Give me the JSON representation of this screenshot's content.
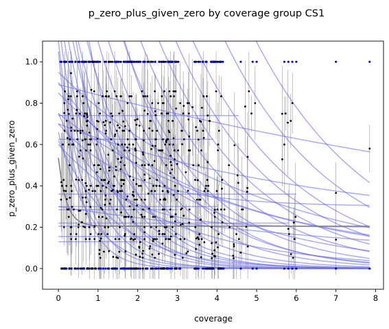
{
  "chart_data": {
    "type": "scatter",
    "title": "p_zero_plus_given_zero by coverage group CS1",
    "xlabel": "coverage",
    "ylabel": "p_zero_plus_given_zero",
    "xlim": [
      -0.4,
      8.2
    ],
    "ylim": [
      -0.1,
      1.1
    ],
    "x_ticks": [
      0,
      1,
      2,
      3,
      4,
      5,
      6,
      7,
      8
    ],
    "y_ticks": [
      0.0,
      0.2,
      0.4,
      0.6,
      0.8,
      1.0
    ],
    "x_tick_labels": [
      "0",
      "1",
      "2",
      "3",
      "4",
      "5",
      "6",
      "7",
      "8"
    ],
    "y_tick_labels": [
      "0.0",
      "0.2",
      "0.4",
      "0.6",
      "0.8",
      "1.0"
    ],
    "grid": false,
    "legend": "none",
    "colors": {
      "points": "#000000",
      "fits": "#6666ee",
      "overall_fit": "#7f7f7f",
      "extremes": "#0000cc",
      "errorbars": "#9a9a9a"
    },
    "fit_curves": [
      {
        "a": 1.05,
        "b": 1.9,
        "c": 0.0
      },
      {
        "a": 1.1,
        "b": 1.6,
        "c": 0.0
      },
      {
        "a": 1.2,
        "b": 1.3,
        "c": 0.0
      },
      {
        "a": 1.3,
        "b": 1.1,
        "c": 0.0
      },
      {
        "a": 1.4,
        "b": 0.95,
        "c": 0.0
      },
      {
        "a": 1.5,
        "b": 0.85,
        "c": 0.0
      },
      {
        "a": 1.6,
        "b": 0.75,
        "c": 0.0
      },
      {
        "a": 1.8,
        "b": 0.68,
        "c": 0.0
      },
      {
        "a": 2.0,
        "b": 0.6,
        "c": 0.0
      },
      {
        "a": 2.2,
        "b": 0.55,
        "c": 0.0
      },
      {
        "a": 2.5,
        "b": 0.5,
        "c": 0.0
      },
      {
        "a": 2.8,
        "b": 0.45,
        "c": 0.0
      },
      {
        "a": 3.2,
        "b": 0.42,
        "c": 0.0
      },
      {
        "a": 3.6,
        "b": 0.4,
        "c": 0.0
      },
      {
        "a": 4.0,
        "b": 0.38,
        "c": 0.0
      },
      {
        "a": 5.0,
        "b": 0.36,
        "c": 0.0
      },
      {
        "a": 6.0,
        "b": 0.34,
        "c": 0.0
      },
      {
        "a": 3.0,
        "b": 0.6,
        "c": 0.0
      },
      {
        "a": 2.2,
        "b": 0.9,
        "c": 0.0
      },
      {
        "a": 1.8,
        "b": 1.1,
        "c": 0.0
      },
      {
        "a": 0.66,
        "b": 1.2,
        "c": 0.0
      },
      {
        "a": 0.62,
        "b": 0.7,
        "c": 0.0
      },
      {
        "a": 0.55,
        "b": 0.8,
        "c": 0.2
      },
      {
        "a": 0.4,
        "b": 0.55,
        "c": 0.3
      },
      {
        "a": 0.6,
        "b": 0.35,
        "c": 0.0
      },
      {
        "a": 0.89,
        "b": 0.058,
        "c": 0.0
      },
      {
        "a": 0.95,
        "b": 0.2,
        "c": 0.0
      },
      {
        "a": 0.9,
        "b": 0.3,
        "c": 0.0
      },
      {
        "a": 0.8,
        "b": 0.25,
        "c": 0.05
      },
      {
        "a": 0.75,
        "b": 0.2,
        "c": 0.0
      },
      {
        "a": 0.5,
        "b": 0.15,
        "c": 0.2
      },
      {
        "a": 0.3,
        "b": 0.1,
        "c": 0.0
      }
    ],
    "flat_lines": [
      {
        "y": 0.74,
        "x0": 0.0,
        "x1": 4.55
      },
      {
        "y": 0.625,
        "x0": 0.0,
        "x1": 3.9
      },
      {
        "y": 0.36,
        "x0": 0.0,
        "x1": 6.0
      },
      {
        "y": 0.3,
        "x0": 0.0,
        "x1": 4.0
      },
      {
        "y": 0.285,
        "x0": 0.0,
        "x1": 3.0
      },
      {
        "y": 0.22,
        "x0": 0.0,
        "x1": 5.8
      },
      {
        "y": 0.205,
        "x0": 0.0,
        "x1": 3.9
      },
      {
        "y": 0.155,
        "x0": 0.0,
        "x1": 3.0
      },
      {
        "y": 0.13,
        "x0": 0.0,
        "x1": 2.0
      }
    ],
    "overall_fit": {
      "a": 0.33,
      "b": 5.0,
      "c": 0.205,
      "x0": 0.0,
      "x1": 7.85
    },
    "point_groups": [
      {
        "x0": 0.05,
        "x1": 1.0,
        "count": 120
      },
      {
        "x0": 1.0,
        "x1": 2.0,
        "count": 150
      },
      {
        "x0": 2.0,
        "x1": 3.0,
        "count": 150
      },
      {
        "x0": 3.0,
        "x1": 4.05,
        "count": 90
      },
      {
        "x0": 4.05,
        "x1": 5.0,
        "count": 30
      },
      {
        "x0": 5.6,
        "x1": 6.0,
        "count": 14
      },
      {
        "x0": 7.0,
        "x1": 7.0,
        "count": 2
      },
      {
        "x0": 7.85,
        "x1": 7.85,
        "count": 1
      }
    ],
    "extreme_x": [
      0.1,
      0.2,
      0.35,
      0.5,
      0.6,
      0.7,
      0.8,
      0.9,
      1.0,
      1.2,
      1.4,
      1.5,
      1.6,
      1.7,
      1.8,
      1.9,
      2.0,
      2.2,
      2.4,
      2.6,
      2.7,
      2.8,
      2.9,
      3.0,
      3.5,
      3.7,
      3.8,
      3.9,
      4.0,
      4.1,
      4.6,
      4.9,
      5.0,
      5.7,
      5.8,
      5.9,
      6.0,
      7.0,
      7.85
    ]
  }
}
